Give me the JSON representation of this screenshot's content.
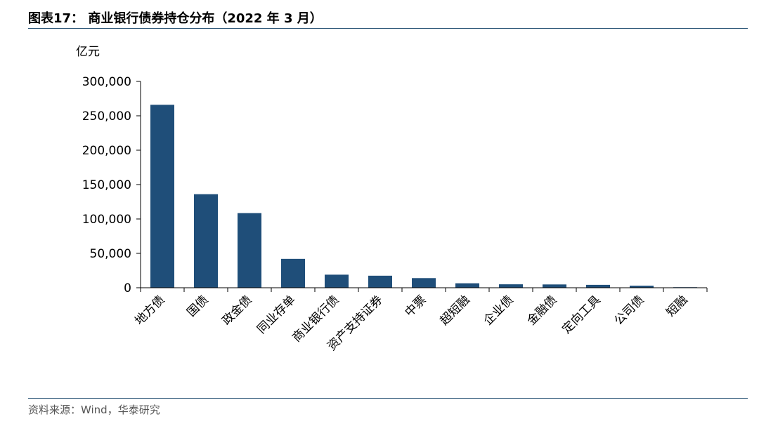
{
  "header": {
    "title": "图表17：  商业银行债券持仓分布（2022 年 3 月）"
  },
  "footer": {
    "source": "资料来源：Wind，华泰研究"
  },
  "colors": {
    "bar": "#1f4e79",
    "rule": "#2e5778",
    "axis": "#000000"
  },
  "chart_data": {
    "type": "bar",
    "title": "图表17：  商业银行债券持仓分布（2022 年 3 月）",
    "ylabel": "亿元",
    "xlabel": "",
    "ylim": [
      0,
      300000
    ],
    "yticks": [
      0,
      50000,
      100000,
      150000,
      200000,
      250000,
      300000
    ],
    "ytick_labels": [
      "0",
      "50,000",
      "100,000",
      "150,000",
      "200,000",
      "250,000",
      "300,000"
    ],
    "grid": false,
    "legend": "none",
    "categories": [
      "地方债",
      "国债",
      "政金债",
      "同业存单",
      "商业银行债",
      "资产支持证券",
      "中票",
      "超短融",
      "企业债",
      "金融债",
      "定向工具",
      "公司债",
      "短融"
    ],
    "values": [
      266000,
      136000,
      108500,
      42000,
      19000,
      17500,
      14000,
      6500,
      5000,
      4800,
      4200,
      3000,
      800
    ]
  }
}
